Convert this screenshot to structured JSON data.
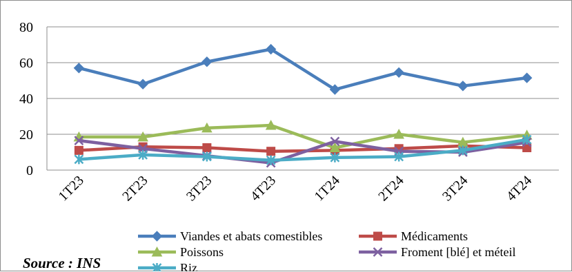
{
  "chart_data": {
    "type": "line",
    "title": "",
    "xlabel": "",
    "ylabel": "",
    "categories": [
      "1T23",
      "2T23",
      "3T23",
      "4T23",
      "1T24",
      "2T24",
      "3T24",
      "4T24"
    ],
    "ylim": [
      0,
      80
    ],
    "yticks": [
      0,
      20,
      40,
      60,
      80
    ],
    "grid": true,
    "legend_position": "bottom",
    "series": [
      {
        "name": "Viandes et abats comestibles",
        "values": [
          57,
          48,
          60.5,
          67.5,
          45,
          54.5,
          47,
          51.5
        ],
        "color": "#4a7ebb",
        "marker": "diamond"
      },
      {
        "name": "Médicaments",
        "values": [
          11,
          13,
          12.5,
          10.5,
          11,
          12,
          13.5,
          12.5
        ],
        "color": "#be4b48",
        "marker": "square"
      },
      {
        "name": "Poissons",
        "values": [
          18.5,
          18.5,
          23.5,
          25,
          12.5,
          20,
          15.5,
          19.5
        ],
        "color": "#9bbb59",
        "marker": "triangle"
      },
      {
        "name": "Froment [blé] et méteil",
        "values": [
          16.5,
          12,
          8,
          4,
          16,
          10.5,
          10,
          15.5
        ],
        "color": "#7d60a0",
        "marker": "x"
      },
      {
        "name": "Riz",
        "values": [
          6,
          8.5,
          7.5,
          5.5,
          7,
          7.5,
          11,
          17
        ],
        "color": "#4bacc6",
        "marker": "star"
      }
    ]
  },
  "source": "Source : INS"
}
